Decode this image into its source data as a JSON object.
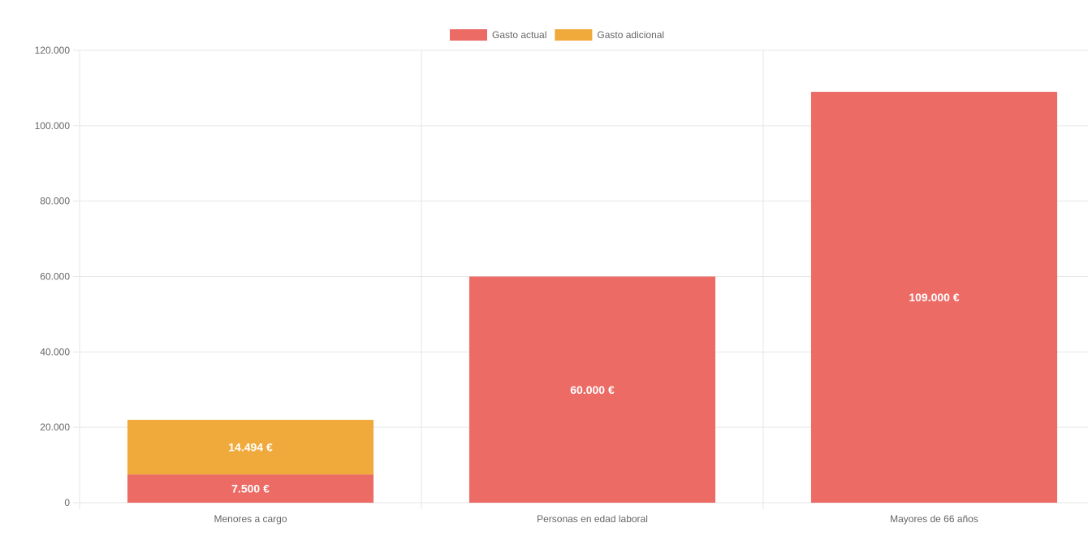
{
  "chart_data": {
    "type": "bar",
    "stacked": true,
    "categories": [
      "Menores a cargo",
      "Personas en edad laboral",
      "Mayores de 66 años"
    ],
    "series": [
      {
        "name": "Gasto actual",
        "color": "#ec6b65",
        "values": [
          7500,
          60000,
          109000
        ],
        "labels": [
          "7.500 €",
          "60.000 €",
          "109.000 €"
        ]
      },
      {
        "name": "Gasto adicional",
        "color": "#f0aa3c",
        "values": [
          14494,
          0,
          0
        ],
        "labels": [
          "14.494 €",
          "",
          ""
        ]
      }
    ],
    "ylim": [
      0,
      120000
    ],
    "yticks": [
      0,
      20000,
      40000,
      60000,
      80000,
      100000,
      120000
    ],
    "ytick_labels": [
      "0",
      "20.000",
      "40.000",
      "60.000",
      "80.000",
      "100.000",
      "120.000"
    ],
    "grid": true,
    "legend_position": "top-center",
    "title": "",
    "xlabel": "",
    "ylabel": ""
  }
}
